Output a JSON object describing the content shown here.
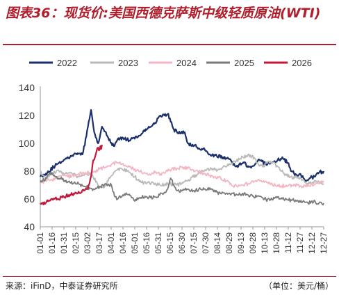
{
  "header": {
    "title": "图表36：现货价:美国西德克萨斯中级轻质原油(WTI)"
  },
  "footer": {
    "source": "来源：iFinD，中泰证券研究所",
    "unit": "（单位：美元/桶）"
  },
  "chart_data": {
    "type": "line",
    "title": "图表36：现货价:美国西德克萨斯中级轻质原油(WTI)",
    "xlabel": "",
    "ylabel": "",
    "ylim": [
      40,
      140
    ],
    "yticks": [
      40,
      60,
      80,
      100,
      120,
      140
    ],
    "xticks": [
      "01-01",
      "01-16",
      "01-31",
      "02-15",
      "03-02",
      "03-17",
      "04-01",
      "04-16",
      "05-01",
      "05-16",
      "05-31",
      "06-15",
      "06-30",
      "07-15",
      "07-30",
      "08-14",
      "08-29",
      "09-13",
      "09-28",
      "10-13",
      "10-28",
      "11-12",
      "11-27",
      "12-12",
      "12-27"
    ],
    "x_unit": "day of year (MM-DD)",
    "grid": false,
    "legend_position": "top",
    "series": [
      {
        "name": "2022",
        "color": "#1b2f6b",
        "points": [
          [
            1,
            76
          ],
          [
            10,
            79
          ],
          [
            20,
            84
          ],
          [
            31,
            88
          ],
          [
            40,
            91
          ],
          [
            48,
            92
          ],
          [
            55,
            92
          ],
          [
            60,
            105
          ],
          [
            66,
            124
          ],
          [
            70,
            108
          ],
          [
            75,
            100
          ],
          [
            80,
            112
          ],
          [
            87,
            105
          ],
          [
            95,
            98
          ],
          [
            100,
            103
          ],
          [
            107,
            104
          ],
          [
            115,
            102
          ],
          [
            121,
            104
          ],
          [
            131,
            107
          ],
          [
            140,
            112
          ],
          [
            147,
            114
          ],
          [
            155,
            120
          ],
          [
            160,
            120
          ],
          [
            164,
            121
          ],
          [
            167,
            118
          ],
          [
            172,
            110
          ],
          [
            176,
            108
          ],
          [
            180,
            107
          ],
          [
            186,
            108
          ],
          [
            190,
            100
          ],
          [
            195,
            98
          ],
          [
            200,
            99
          ],
          [
            205,
            96
          ],
          [
            212,
            95
          ],
          [
            220,
            91
          ],
          [
            227,
            91
          ],
          [
            235,
            90
          ],
          [
            240,
            89
          ],
          [
            245,
            88
          ],
          [
            250,
            84
          ],
          [
            255,
            84
          ],
          [
            262,
            86
          ],
          [
            268,
            83
          ],
          [
            275,
            84
          ],
          [
            280,
            88
          ],
          [
            285,
            87
          ],
          [
            290,
            85
          ],
          [
            298,
            86
          ],
          [
            305,
            88
          ],
          [
            312,
            89
          ],
          [
            318,
            86
          ],
          [
            322,
            80
          ],
          [
            328,
            78
          ],
          [
            335,
            77
          ],
          [
            341,
            73
          ],
          [
            346,
            75
          ],
          [
            352,
            76
          ],
          [
            358,
            79
          ],
          [
            364,
            80
          ]
        ]
      },
      {
        "name": "2023",
        "color": "#b9b9b9",
        "points": [
          [
            1,
            80
          ],
          [
            8,
            74
          ],
          [
            14,
            78
          ],
          [
            25,
            80
          ],
          [
            31,
            78
          ],
          [
            40,
            79
          ],
          [
            50,
            76
          ],
          [
            60,
            78
          ],
          [
            68,
            77
          ],
          [
            75,
            70
          ],
          [
            82,
            68
          ],
          [
            90,
            75
          ],
          [
            97,
            80
          ],
          [
            105,
            82
          ],
          [
            115,
            79
          ],
          [
            122,
            76
          ],
          [
            130,
            72
          ],
          [
            137,
            71
          ],
          [
            145,
            72
          ],
          [
            152,
            70
          ],
          [
            160,
            70
          ],
          [
            167,
            71
          ],
          [
            175,
            70
          ],
          [
            182,
            71
          ],
          [
            190,
            73
          ],
          [
            197,
            76
          ],
          [
            205,
            79
          ],
          [
            212,
            81
          ],
          [
            220,
            82
          ],
          [
            227,
            80
          ],
          [
            235,
            83
          ],
          [
            242,
            84
          ],
          [
            250,
            87
          ],
          [
            257,
            89
          ],
          [
            265,
            91
          ],
          [
            272,
            91
          ],
          [
            276,
            89
          ],
          [
            281,
            84
          ],
          [
            286,
            83
          ],
          [
            292,
            86
          ],
          [
            298,
            86
          ],
          [
            304,
            84
          ],
          [
            310,
            80
          ],
          [
            316,
            77
          ],
          [
            322,
            76
          ],
          [
            330,
            75
          ],
          [
            337,
            74
          ],
          [
            343,
            71
          ],
          [
            350,
            72
          ],
          [
            357,
            73
          ],
          [
            364,
            71
          ]
        ]
      },
      {
        "name": "2024",
        "color": "#f2b6c2",
        "points": [
          [
            1,
            72
          ],
          [
            8,
            73
          ],
          [
            15,
            74
          ],
          [
            22,
            75
          ],
          [
            29,
            77
          ],
          [
            36,
            76
          ],
          [
            43,
            77
          ],
          [
            50,
            78
          ],
          [
            57,
            78
          ],
          [
            64,
            79
          ],
          [
            71,
            80
          ],
          [
            78,
            82
          ],
          [
            85,
            83
          ],
          [
            92,
            85
          ],
          [
            99,
            86
          ],
          [
            106,
            85
          ],
          [
            113,
            83
          ],
          [
            120,
            82
          ],
          [
            127,
            80
          ],
          [
            134,
            79
          ],
          [
            141,
            78
          ],
          [
            148,
            79
          ],
          [
            155,
            78
          ],
          [
            162,
            80
          ],
          [
            169,
            81
          ],
          [
            176,
            82
          ],
          [
            183,
            83
          ],
          [
            190,
            82
          ],
          [
            197,
            81
          ],
          [
            204,
            80
          ],
          [
            211,
            78
          ],
          [
            218,
            77
          ],
          [
            225,
            76
          ],
          [
            232,
            75
          ],
          [
            239,
            73
          ],
          [
            246,
            70
          ],
          [
            253,
            69
          ],
          [
            260,
            70
          ],
          [
            267,
            71
          ],
          [
            274,
            72
          ],
          [
            281,
            74
          ],
          [
            288,
            72
          ],
          [
            295,
            71
          ],
          [
            302,
            70
          ],
          [
            309,
            69
          ],
          [
            316,
            70
          ],
          [
            323,
            70
          ],
          [
            330,
            70
          ],
          [
            337,
            69
          ],
          [
            344,
            70
          ],
          [
            351,
            70
          ],
          [
            358,
            71
          ],
          [
            364,
            72
          ]
        ]
      },
      {
        "name": "2025",
        "color": "#7a7a7a",
        "points": [
          [
            1,
            72
          ],
          [
            8,
            75
          ],
          [
            15,
            79
          ],
          [
            22,
            76
          ],
          [
            29,
            74
          ],
          [
            36,
            72
          ],
          [
            43,
            71
          ],
          [
            50,
            71
          ],
          [
            57,
            69
          ],
          [
            64,
            68
          ],
          [
            71,
            67
          ],
          [
            78,
            69
          ],
          [
            85,
            71
          ],
          [
            92,
            70
          ],
          [
            96,
            62
          ],
          [
            100,
            60
          ],
          [
            107,
            63
          ],
          [
            114,
            63
          ],
          [
            121,
            59
          ],
          [
            128,
            61
          ],
          [
            135,
            62
          ],
          [
            142,
            61
          ],
          [
            150,
            61
          ],
          [
            157,
            64
          ],
          [
            164,
            67
          ],
          [
            168,
            75
          ],
          [
            172,
            70
          ],
          [
            176,
            66
          ],
          [
            183,
            66
          ],
          [
            190,
            67
          ],
          [
            197,
            66
          ],
          [
            204,
            67
          ],
          [
            211,
            67
          ],
          [
            218,
            68
          ],
          [
            225,
            65
          ],
          [
            232,
            64
          ],
          [
            239,
            64
          ],
          [
            246,
            64
          ],
          [
            253,
            63
          ],
          [
            260,
            64
          ],
          [
            267,
            63
          ],
          [
            274,
            62
          ],
          [
            281,
            62
          ],
          [
            288,
            60
          ],
          [
            295,
            59
          ],
          [
            302,
            61
          ],
          [
            309,
            60
          ],
          [
            316,
            60
          ],
          [
            323,
            59
          ],
          [
            330,
            59
          ],
          [
            337,
            58
          ],
          [
            344,
            57
          ],
          [
            351,
            58
          ],
          [
            358,
            57
          ],
          [
            364,
            57
          ]
        ]
      },
      {
        "name": "2026",
        "color": "#c0183a",
        "points": [
          [
            1,
            57
          ],
          [
            5,
            56
          ],
          [
            9,
            58
          ],
          [
            14,
            59
          ],
          [
            19,
            60
          ],
          [
            24,
            60
          ],
          [
            29,
            61
          ],
          [
            34,
            62
          ],
          [
            39,
            63
          ],
          [
            44,
            64
          ],
          [
            49,
            64
          ],
          [
            54,
            65
          ],
          [
            57,
            66
          ],
          [
            61,
            67
          ],
          [
            63,
            70
          ],
          [
            65,
            74
          ],
          [
            67,
            80
          ],
          [
            69,
            88
          ],
          [
            71,
            90
          ],
          [
            73,
            94
          ],
          [
            75,
            97
          ],
          [
            76,
            95
          ],
          [
            78,
            98
          ],
          [
            79,
            96
          ],
          [
            80,
            99
          ]
        ]
      }
    ]
  }
}
